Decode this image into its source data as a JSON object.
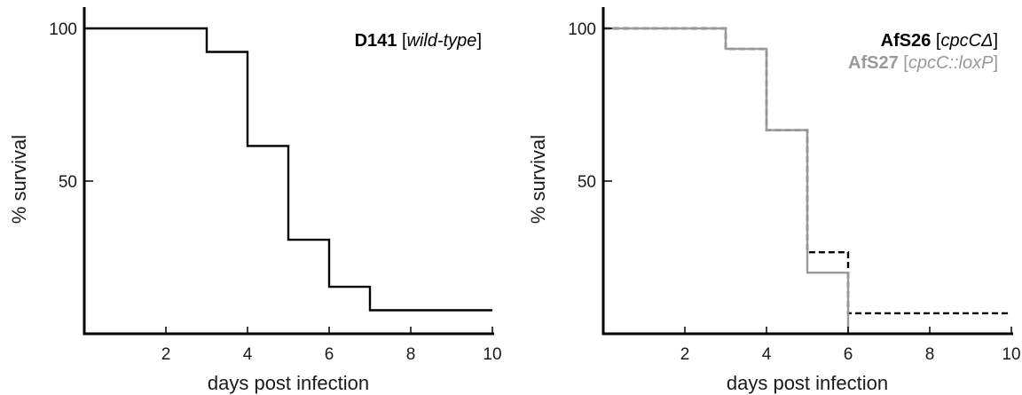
{
  "chart_data": [
    {
      "type": "line",
      "step": true,
      "xlabel": "days post infection",
      "ylabel": "% survival",
      "xlim": [
        0,
        10
      ],
      "ylim": [
        0,
        100
      ],
      "xticks": [
        "2",
        "4",
        "6",
        "8",
        "10"
      ],
      "yticks": [
        "50",
        "100"
      ],
      "grid": false,
      "legend_position": "top-right",
      "series": [
        {
          "name": "D141",
          "name_detail": "wild-type",
          "color": "#000000",
          "dash": "solid",
          "x": [
            0,
            3,
            4,
            5,
            6,
            7,
            10
          ],
          "y": [
            100,
            92.3,
            61.5,
            30.8,
            15.4,
            7.7,
            7.7
          ]
        }
      ]
    },
    {
      "type": "line",
      "step": true,
      "xlabel": "days post infection",
      "ylabel": "% survival",
      "xlim": [
        0,
        10
      ],
      "ylim": [
        0,
        100
      ],
      "xticks": [
        "2",
        "4",
        "6",
        "8",
        "10"
      ],
      "yticks": [
        "50",
        "100"
      ],
      "grid": false,
      "legend_position": "top-right",
      "series": [
        {
          "name": "AfS26",
          "name_detail": "cpcCΔ",
          "color": "#000000",
          "dash": "dashed",
          "x": [
            0,
            3,
            4,
            5,
            6,
            10
          ],
          "y": [
            100,
            93.3,
            66.7,
            26.7,
            6.7,
            6.7
          ]
        },
        {
          "name": "AfS27",
          "name_detail": "cpcC::loxP",
          "color": "#999999",
          "dash": "solid",
          "x": [
            0,
            3,
            4,
            5,
            6
          ],
          "y": [
            100,
            93.3,
            66.7,
            20,
            0
          ]
        }
      ]
    }
  ]
}
